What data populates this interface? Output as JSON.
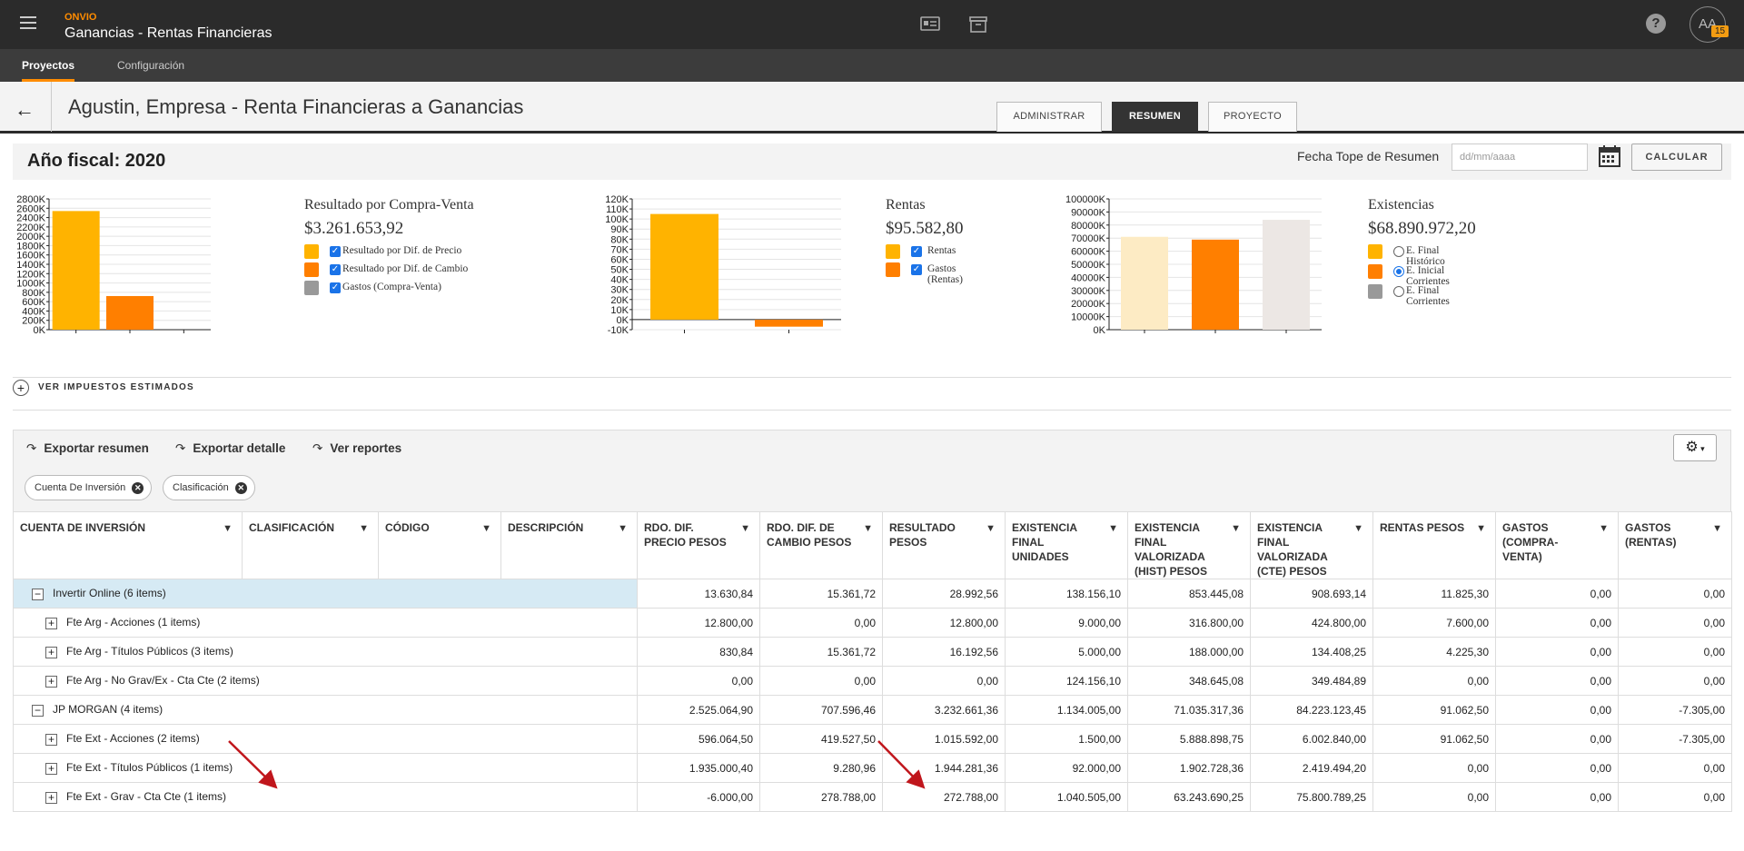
{
  "app": {
    "brand": "ONVIO",
    "title": "Ganancias - Rentas Financieras",
    "avatar_initials": "AA",
    "notif_count": "15",
    "help": "?"
  },
  "subnav": {
    "tabs": [
      "Proyectos",
      "Configuración"
    ]
  },
  "header": {
    "title": "Agustin, Empresa - Renta Financieras a Ganancias",
    "tabs": [
      "ADMINISTRAR",
      "RESUMEN",
      "PROYECTO"
    ],
    "active_tab": "RESUMEN"
  },
  "year": {
    "title": "Año fiscal: 2020",
    "fecha_label": "Fecha Tope de Resumen",
    "fecha_placeholder": "dd/mm/aaaa",
    "calc_label": "CALCULAR"
  },
  "summaries": [
    {
      "title": "Resultado por Compra-Venta",
      "value": "$3.261.653,92",
      "items": [
        {
          "label": "Resultado por Dif. de Precio",
          "color": "#ffb300",
          "control": "checkbox",
          "checked": true
        },
        {
          "label": "Resultado por Dif. de Cambio",
          "color": "#ff7f00",
          "control": "checkbox",
          "checked": true
        },
        {
          "label": "Gastos (Compra-Venta)",
          "color": "#999999",
          "control": "checkbox",
          "checked": true
        }
      ]
    },
    {
      "title": "Rentas",
      "value": "$95.582,80",
      "items": [
        {
          "label": "Rentas",
          "color": "#ffb300",
          "control": "checkbox",
          "checked": true
        },
        {
          "label": "Gastos (Rentas)",
          "color": "#ff7f00",
          "control": "checkbox",
          "checked": true
        }
      ]
    },
    {
      "title": "Existencias",
      "value": "$68.890.972,20",
      "items": [
        {
          "label": "E. Final Histórico",
          "color": "#ffb300",
          "control": "radio",
          "checked": false
        },
        {
          "label": "E. Inicial Corrientes",
          "color": "#ff7f00",
          "control": "radio",
          "checked": true
        },
        {
          "label": "E. Final Corrientes",
          "color": "#999999",
          "control": "radio",
          "checked": false
        }
      ]
    }
  ],
  "chart_data": [
    {
      "type": "bar",
      "categories": [
        "Resultado por Dif. de Precio",
        "Resultado por Dif. de Cambio",
        "Gastos (Compra-Venta)"
      ],
      "values": [
        2540000,
        720000,
        0
      ],
      "colors": [
        "#ffb300",
        "#ff7f00",
        "#999999"
      ],
      "ylim": [
        0,
        2800000
      ],
      "ticks": [
        "0K",
        "200K",
        "400K",
        "600K",
        "800K",
        "1000K",
        "1200K",
        "1400K",
        "1600K",
        "1800K",
        "2000K",
        "2200K",
        "2400K",
        "2600K",
        "2800K"
      ],
      "grid": true
    },
    {
      "type": "bar",
      "categories": [
        "Rentas",
        "Gastos (Rentas)"
      ],
      "values": [
        105000,
        -7000
      ],
      "colors": [
        "#ffb300",
        "#ff7f00"
      ],
      "ylim": [
        -10000,
        120000
      ],
      "ticks": [
        "-10K",
        "0K",
        "10K",
        "20K",
        "30K",
        "40K",
        "50K",
        "60K",
        "70K",
        "80K",
        "90K",
        "100K",
        "110K",
        "120K"
      ],
      "grid": true
    },
    {
      "type": "bar",
      "categories": [
        "E. Final Histórico",
        "E. Inicial Corrientes",
        "E. Final Corrientes"
      ],
      "values": [
        71000000,
        68890972,
        84000000
      ],
      "colors": [
        "#ffb300",
        "#ff7f00",
        "#999999"
      ],
      "faded": [
        true,
        false,
        true
      ],
      "ylim": [
        0,
        100000000
      ],
      "ticks": [
        "0K",
        "10000K",
        "20000K",
        "30000K",
        "40000K",
        "50000K",
        "60000K",
        "70000K",
        "80000K",
        "90000K",
        "100000K"
      ],
      "grid": true
    }
  ],
  "impuestos_label": "VER IMPUESTOS ESTIMADOS",
  "toolbar": {
    "export_summary": "Exportar resumen",
    "export_detail": "Exportar detalle",
    "reports": "Ver reportes"
  },
  "chips": [
    "Cuenta De Inversión",
    "Clasificación"
  ],
  "table": {
    "columns": [
      "CUENTA DE INVERSIÓN",
      "CLASIFICACIÓN",
      "CÓDIGO",
      "DESCRIPCIÓN",
      "RDO. DIF. PRECIO PESOS",
      "RDO. DIF. DE CAMBIO PESOS",
      "RESULTADO PESOS",
      "EXISTENCIA FINAL UNIDADES",
      "EXISTENCIA FINAL VALORIZADA (HIST) PESOS",
      "EXISTENCIA FINAL VALORIZADA (CTE) PESOS",
      "RENTAS PESOS",
      "GASTOS (COMPRA-VENTA)",
      "GASTOS (RENTAS)"
    ],
    "rows": [
      {
        "label": "Invertir Online (6 items)",
        "level": 0,
        "toggle": "−",
        "highlight": true,
        "values": [
          "13.630,84",
          "15.361,72",
          "28.992,56",
          "138.156,10",
          "853.445,08",
          "908.693,14",
          "11.825,30",
          "0,00",
          "0,00"
        ]
      },
      {
        "label": "Fte Arg - Acciones (1 items)",
        "level": 1,
        "toggle": "+",
        "values": [
          "12.800,00",
          "0,00",
          "12.800,00",
          "9.000,00",
          "316.800,00",
          "424.800,00",
          "7.600,00",
          "0,00",
          "0,00"
        ]
      },
      {
        "label": "Fte Arg - Títulos Públicos (3 items)",
        "level": 1,
        "toggle": "+",
        "values": [
          "830,84",
          "15.361,72",
          "16.192,56",
          "5.000,00",
          "188.000,00",
          "134.408,25",
          "4.225,30",
          "0,00",
          "0,00"
        ]
      },
      {
        "label": "Fte Arg - No Grav/Ex - Cta Cte (2 items)",
        "level": 1,
        "toggle": "+",
        "values": [
          "0,00",
          "0,00",
          "0,00",
          "124.156,10",
          "348.645,08",
          "349.484,89",
          "0,00",
          "0,00",
          "0,00"
        ]
      },
      {
        "label": "JP MORGAN (4 items)",
        "level": 0,
        "toggle": "−",
        "values": [
          "2.525.064,90",
          "707.596,46",
          "3.232.661,36",
          "1.134.005,00",
          "71.035.317,36",
          "84.223.123,45",
          "91.062,50",
          "0,00",
          "-7.305,00"
        ]
      },
      {
        "label": "Fte Ext - Acciones (2 items)",
        "level": 1,
        "toggle": "+",
        "values": [
          "596.064,50",
          "419.527,50",
          "1.015.592,00",
          "1.500,00",
          "5.888.898,75",
          "6.002.840,00",
          "91.062,50",
          "0,00",
          "-7.305,00"
        ]
      },
      {
        "label": "Fte Ext - Títulos Públicos (1 items)",
        "level": 1,
        "toggle": "+",
        "values": [
          "1.935.000,40",
          "9.280,96",
          "1.944.281,36",
          "92.000,00",
          "1.902.728,36",
          "2.419.494,20",
          "0,00",
          "0,00",
          "0,00"
        ]
      },
      {
        "label": "Fte Ext - Grav - Cta Cte (1 items)",
        "level": 1,
        "toggle": "+",
        "values": [
          "-6.000,00",
          "278.788,00",
          "272.788,00",
          "1.040.505,00",
          "63.243.690,25",
          "75.800.789,25",
          "0,00",
          "0,00",
          "0,00"
        ]
      }
    ]
  }
}
